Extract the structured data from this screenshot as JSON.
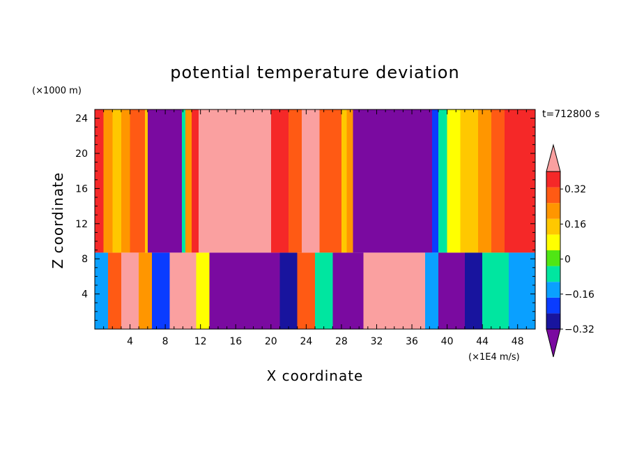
{
  "chart_data": {
    "type": "heatmap",
    "title": "potential temperature deviation",
    "xlabel": "X coordinate",
    "ylabel": "Z coordinate",
    "x_unit": "(×1E4 m/s)",
    "y_unit": "(×1000 m)",
    "time_label": "t=712800 s",
    "xlim": [
      0,
      50
    ],
    "ylim": [
      0,
      25
    ],
    "x_ticks": [
      4,
      8,
      12,
      16,
      20,
      24,
      28,
      32,
      36,
      40,
      44,
      48
    ],
    "y_ticks": [
      4,
      8,
      12,
      16,
      20,
      24
    ],
    "x_tick_labels": [
      "4",
      "8",
      "12",
      "16",
      "20",
      "24",
      "28",
      "32",
      "36",
      "40",
      "44",
      "48"
    ],
    "y_tick_labels": [
      "4",
      "8",
      "12",
      "16",
      "20",
      "24"
    ],
    "colorbar": {
      "levels": [
        -0.4,
        -0.32,
        -0.24,
        -0.16,
        -0.08,
        0,
        0.08,
        0.16,
        0.24,
        0.32,
        0.4
      ],
      "tick_values": [
        -0.32,
        -0.16,
        0,
        0.16,
        0.32
      ],
      "tick_labels": [
        "−0.32",
        "−0.16",
        "0",
        "0.16",
        "0.32"
      ],
      "colors": [
        "#7a0aa0",
        "#18149e",
        "#0a3cff",
        "#0aa0ff",
        "#00e6a0",
        "#50e614",
        "#ffff00",
        "#ffc800",
        "#ff9600",
        "#ff5a14",
        "#f52828",
        "#faa0a0"
      ],
      "extend": "both"
    },
    "upper_layer": {
      "z_range": [
        8.7,
        25
      ],
      "columns": [
        {
          "x": 0,
          "v": 0.32
        },
        {
          "x": 1,
          "v": 0.2
        },
        {
          "x": 2,
          "v": 0.14
        },
        {
          "x": 3,
          "v": 0.18
        },
        {
          "x": 4,
          "v": 0.24
        },
        {
          "x": 5,
          "v": 0.3
        },
        {
          "x": 5.7,
          "v": 0.1
        },
        {
          "x": 6,
          "v": -0.45
        },
        {
          "x": 9.6,
          "v": -0.45
        },
        {
          "x": 9.9,
          "v": -0.1
        },
        {
          "x": 10.3,
          "v": 0.2
        },
        {
          "x": 11,
          "v": 0.35
        },
        {
          "x": 11.8,
          "v": 0.45
        },
        {
          "x": 18,
          "v": 0.45
        },
        {
          "x": 20,
          "v": 0.38
        },
        {
          "x": 22,
          "v": 0.3
        },
        {
          "x": 23.5,
          "v": 0.4
        },
        {
          "x": 24.5,
          "v": 0.45
        },
        {
          "x": 25.5,
          "v": 0.3
        },
        {
          "x": 27,
          "v": 0.26
        },
        {
          "x": 28,
          "v": 0.1
        },
        {
          "x": 28.6,
          "v": 0.2
        },
        {
          "x": 29.3,
          "v": -0.45
        },
        {
          "x": 37.5,
          "v": -0.45
        },
        {
          "x": 38.3,
          "v": -0.32
        },
        {
          "x": 39,
          "v": -0.1
        },
        {
          "x": 40,
          "v": 0.05
        },
        {
          "x": 41.5,
          "v": 0.12
        },
        {
          "x": 43.5,
          "v": 0.2
        },
        {
          "x": 45,
          "v": 0.28
        },
        {
          "x": 46.5,
          "v": 0.32
        },
        {
          "x": 48,
          "v": 0.38
        },
        {
          "x": 50,
          "v": 0.4
        }
      ]
    },
    "lower_layer": {
      "z_range": [
        0,
        8.7
      ],
      "columns": [
        {
          "x": 0,
          "v": -0.2
        },
        {
          "x": 1.5,
          "v": 0.3
        },
        {
          "x": 3,
          "v": 0.42
        },
        {
          "x": 5,
          "v": 0.2
        },
        {
          "x": 6.5,
          "v": -0.3
        },
        {
          "x": 8.5,
          "v": 0.45
        },
        {
          "x": 10.5,
          "v": 0.45
        },
        {
          "x": 11.5,
          "v": 0.0
        },
        {
          "x": 13,
          "v": -0.45
        },
        {
          "x": 19,
          "v": -0.45
        },
        {
          "x": 21,
          "v": -0.4
        },
        {
          "x": 23,
          "v": 0.3
        },
        {
          "x": 25,
          "v": -0.1
        },
        {
          "x": 27,
          "v": -0.45
        },
        {
          "x": 29.5,
          "v": -0.45
        },
        {
          "x": 30.5,
          "v": 0.45
        },
        {
          "x": 36,
          "v": 0.45
        },
        {
          "x": 37.5,
          "v": -0.2
        },
        {
          "x": 39,
          "v": -0.45
        },
        {
          "x": 42,
          "v": -0.4
        },
        {
          "x": 44,
          "v": -0.1
        },
        {
          "x": 47,
          "v": -0.2
        },
        {
          "x": 50,
          "v": -0.1
        }
      ]
    }
  }
}
